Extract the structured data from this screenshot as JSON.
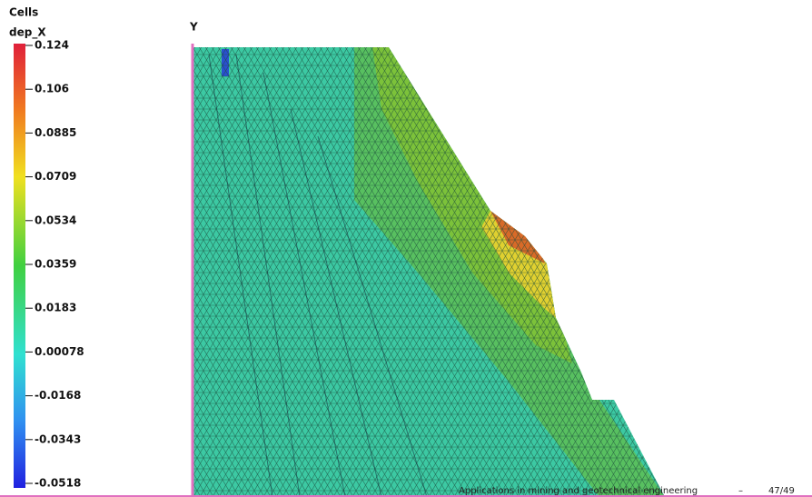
{
  "legend": {
    "title": "Cells",
    "field": "dep_X",
    "ticks": [
      "0.124",
      "0.106",
      "0.0885",
      "0.0709",
      "0.0534",
      "0.0359",
      "0.0183",
      "0.00078",
      "-0.0168",
      "-0.0343",
      "-0.0518"
    ]
  },
  "axis_label": "Y",
  "footer": {
    "text": "Applications in mining and geotechnical engineering",
    "separator": "–",
    "page": "47/49"
  }
}
